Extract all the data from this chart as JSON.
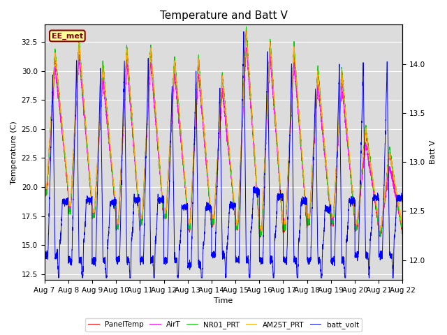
{
  "title": "Temperature and Batt V",
  "ylabel_left": "Temperature (C)",
  "ylabel_right": "Batt V",
  "xlabel": "Time",
  "ylim_left": [
    12,
    34
  ],
  "ylim_right": [
    11.8,
    14.4
  ],
  "xlim": [
    0,
    15
  ],
  "xtick_labels": [
    "Aug 7",
    "Aug 8",
    "Aug 9",
    "Aug 10",
    "Aug 11",
    "Aug 12",
    "Aug 13",
    "Aug 14",
    "Aug 15",
    "Aug 16",
    "Aug 17",
    "Aug 18",
    "Aug 19",
    "Aug 20",
    "Aug 21",
    "Aug 22"
  ],
  "xtick_positions": [
    0,
    1,
    2,
    3,
    4,
    5,
    6,
    7,
    8,
    9,
    10,
    11,
    12,
    13,
    14,
    15
  ],
  "colors": {
    "PanelTemp": "#ff0000",
    "AirT": "#ff00ff",
    "NR01_PRT": "#00cc00",
    "AM25T_PRT": "#ffaa00",
    "batt_volt": "#0000ff"
  },
  "legend_labels": [
    "PanelTemp",
    "AirT",
    "NR01_PRT",
    "AM25T_PRT",
    "batt_volt"
  ],
  "site_label": "EE_met",
  "bg_color": "#dcdcdc",
  "title_fontsize": 11,
  "axis_fontsize": 8,
  "tick_fontsize": 7.5
}
